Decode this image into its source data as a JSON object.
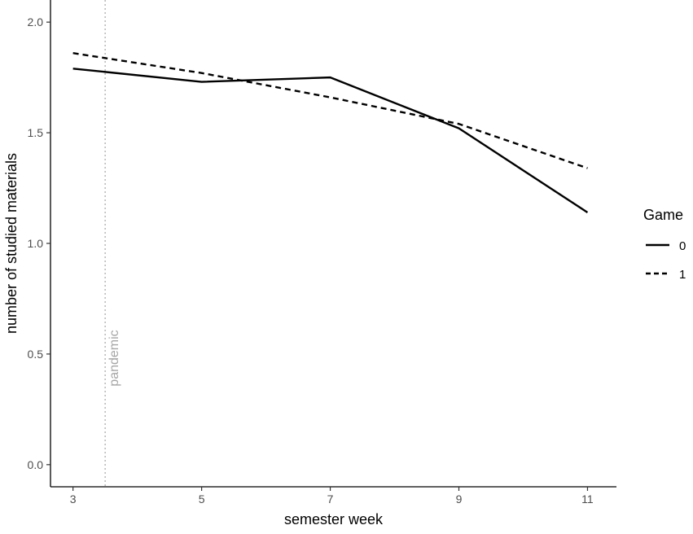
{
  "chart_data": {
    "type": "line",
    "title": "",
    "xlabel": "semester week",
    "ylabel": "number of studied materials",
    "x": [
      3,
      5,
      7,
      9,
      11
    ],
    "xlim": [
      2.65,
      11.45
    ],
    "ylim": [
      -0.1,
      2.1
    ],
    "x_ticks": [
      3,
      5,
      7,
      9,
      11
    ],
    "y_ticks": [
      0.0,
      0.5,
      1.0,
      1.5,
      2.0
    ],
    "y_tick_labels": [
      "0.0",
      "0.5",
      "1.0",
      "1.5",
      "2.0"
    ],
    "grid": false,
    "legend": {
      "title": "Game",
      "position": "right"
    },
    "series": [
      {
        "name": "0",
        "line_style": "solid",
        "values": [
          1.79,
          1.73,
          1.75,
          1.52,
          1.14
        ]
      },
      {
        "name": "1",
        "line_style": "dashed",
        "values": [
          1.86,
          1.77,
          1.66,
          1.54,
          1.34
        ]
      }
    ],
    "annotations": [
      {
        "type": "vline",
        "x": 3.5,
        "text": "pandemic",
        "color": "#a6a6a6",
        "style": "dotted"
      }
    ],
    "colors": {
      "series": "#000000",
      "axis": "#000000",
      "tick_text": "#4d4d4d",
      "annotation": "#a6a6a6"
    }
  }
}
